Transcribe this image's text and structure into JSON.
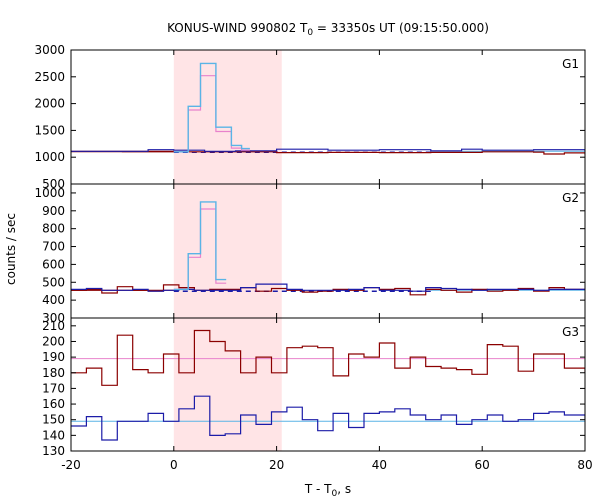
{
  "chart_data": {
    "type": "line",
    "title": "KONUS-WIND 990802 T",
    "title_sub": "0",
    "title_rest": " = 33350s UT (09:15:50.000)",
    "xlabel": "T - T",
    "xlabel_sub": "0",
    "xlabel_rest": ", s",
    "ylabel": "counts / sec",
    "xlim": [
      -20,
      80
    ],
    "xticks": [
      -20,
      0,
      20,
      40,
      60,
      80
    ],
    "shade_interval": [
      0,
      21
    ],
    "colors": {
      "shade": "#ffe4e6",
      "low": "#8b0000",
      "high": "#1c1ca8",
      "raw": "#5ab4e6",
      "fit": "#e882cc",
      "bg_low": "#e882cc",
      "bg_high": "#5ab4e6"
    },
    "panels": [
      {
        "label": "G1",
        "ylim": [
          500,
          3000
        ],
        "yticks": [
          500,
          1000,
          1500,
          2000,
          2500,
          3000
        ],
        "background": 1110,
        "bg_style": "dashed-split",
        "series_low": {
          "x": [
            -20,
            -10,
            0,
            10,
            20,
            30,
            40,
            50,
            60,
            70,
            72,
            76,
            80
          ],
          "y": [
            1105,
            1100,
            1100,
            1100,
            1085,
            1090,
            1085,
            1090,
            1100,
            1095,
            1060,
            1080,
            1050
          ]
        },
        "series_high": {
          "x": [
            -20,
            -10,
            -5,
            0,
            6,
            12,
            20,
            30,
            40,
            50,
            56,
            60,
            70,
            80
          ],
          "y": [
            1110,
            1110,
            1140,
            1130,
            1110,
            1120,
            1150,
            1130,
            1140,
            1120,
            1150,
            1130,
            1140,
            1110
          ]
        },
        "pulse_raw": {
          "x": [
            0,
            1,
            2.8,
            4.2,
            5.2,
            6.2,
            7.2,
            8.2,
            9.2,
            10.2,
            11.2,
            12.2,
            13.2,
            14.8
          ],
          "y": [
            1100,
            1100,
            1950,
            1950,
            2750,
            2750,
            2750,
            1560,
            1560,
            1560,
            1220,
            1220,
            1160,
            1160
          ]
        },
        "pulse_fit": {
          "x": [
            0,
            1,
            2.8,
            4.2,
            5.2,
            6.2,
            7.2,
            8.2,
            9.2,
            10.2,
            11.2,
            12.2,
            13.2,
            14.8
          ],
          "y": [
            1100,
            1100,
            1880,
            1880,
            2520,
            2520,
            2520,
            1480,
            1480,
            1480,
            1170,
            1170,
            1130,
            1130
          ]
        }
      },
      {
        "label": "G2",
        "ylim": [
          300,
          1050
        ],
        "yticks": [
          300,
          400,
          500,
          600,
          700,
          800,
          900,
          1000
        ],
        "background": 455,
        "bg_style": "dashed-split",
        "series_low": {
          "x": [
            -20,
            -17,
            -14,
            -11,
            -8,
            -5,
            -2,
            1,
            4,
            7,
            10,
            13,
            16,
            19,
            22,
            25,
            28,
            31,
            34,
            37,
            40,
            43,
            46,
            49,
            52,
            55,
            58,
            61,
            64,
            67,
            70,
            73,
            76,
            80
          ],
          "y": [
            455,
            460,
            440,
            475,
            455,
            450,
            485,
            470,
            455,
            460,
            460,
            470,
            450,
            465,
            455,
            445,
            450,
            460,
            455,
            470,
            460,
            465,
            430,
            460,
            455,
            445,
            460,
            450,
            455,
            465,
            450,
            470,
            460,
            465
          ]
        },
        "series_high": {
          "x": [
            -20,
            -17,
            -14,
            -11,
            -8,
            -5,
            -2,
            1,
            4,
            7,
            10,
            13,
            16,
            19,
            22,
            25,
            28,
            31,
            34,
            37,
            40,
            43,
            46,
            49,
            52,
            55,
            58,
            61,
            64,
            67,
            70,
            73,
            76,
            80
          ],
          "y": [
            460,
            465,
            455,
            455,
            460,
            450,
            455,
            460,
            455,
            455,
            455,
            470,
            490,
            490,
            460,
            455,
            455,
            455,
            460,
            470,
            455,
            455,
            450,
            470,
            465,
            460,
            455,
            460,
            460,
            460,
            455,
            460,
            460,
            460
          ]
        },
        "pulse_raw": {
          "x": [
            0,
            1,
            2.8,
            4.2,
            5.2,
            6.2,
            7.2,
            8.2,
            9.2,
            10.2
          ],
          "y": [
            460,
            460,
            660,
            660,
            950,
            950,
            950,
            515,
            515,
            515
          ]
        },
        "pulse_fit": {
          "x": [
            0,
            1,
            2.8,
            4.2,
            5.2,
            6.2,
            7.2,
            8.2,
            9.2,
            10.2
          ],
          "y": [
            460,
            460,
            640,
            640,
            910,
            910,
            910,
            495,
            495,
            495
          ]
        }
      },
      {
        "label": "G3",
        "ylim": [
          130,
          215
        ],
        "yticks": [
          130,
          140,
          150,
          160,
          170,
          180,
          190,
          200,
          210
        ],
        "bg_low": 189,
        "bg_high": 149,
        "bg_style": "solid",
        "series_low": {
          "x": [
            -20,
            -17,
            -14,
            -11,
            -8,
            -5,
            -2,
            1,
            4,
            7,
            10,
            13,
            16,
            19,
            22,
            25,
            28,
            31,
            34,
            37,
            40,
            43,
            46,
            49,
            52,
            55,
            58,
            61,
            64,
            67,
            70,
            73,
            76,
            80
          ],
          "y": [
            180,
            183,
            172,
            204,
            182,
            180,
            192,
            180,
            207,
            200,
            194,
            180,
            190,
            180,
            196,
            197,
            196,
            178,
            192,
            190,
            199,
            183,
            190,
            184,
            183,
            182,
            179,
            198,
            197,
            181,
            192,
            192,
            183,
            180
          ]
        },
        "series_high": {
          "x": [
            -20,
            -17,
            -14,
            -11,
            -8,
            -5,
            -2,
            1,
            4,
            7,
            10,
            13,
            16,
            19,
            22,
            25,
            28,
            31,
            34,
            37,
            40,
            43,
            46,
            49,
            52,
            55,
            58,
            61,
            64,
            67,
            70,
            73,
            76,
            80
          ],
          "y": [
            146,
            152,
            137,
            149,
            149,
            154,
            149,
            157,
            165,
            140,
            141,
            153,
            147,
            155,
            158,
            150,
            143,
            154,
            145,
            154,
            155,
            157,
            153,
            150,
            153,
            147,
            150,
            153,
            149,
            150,
            154,
            155,
            153,
            150
          ]
        }
      }
    ]
  }
}
